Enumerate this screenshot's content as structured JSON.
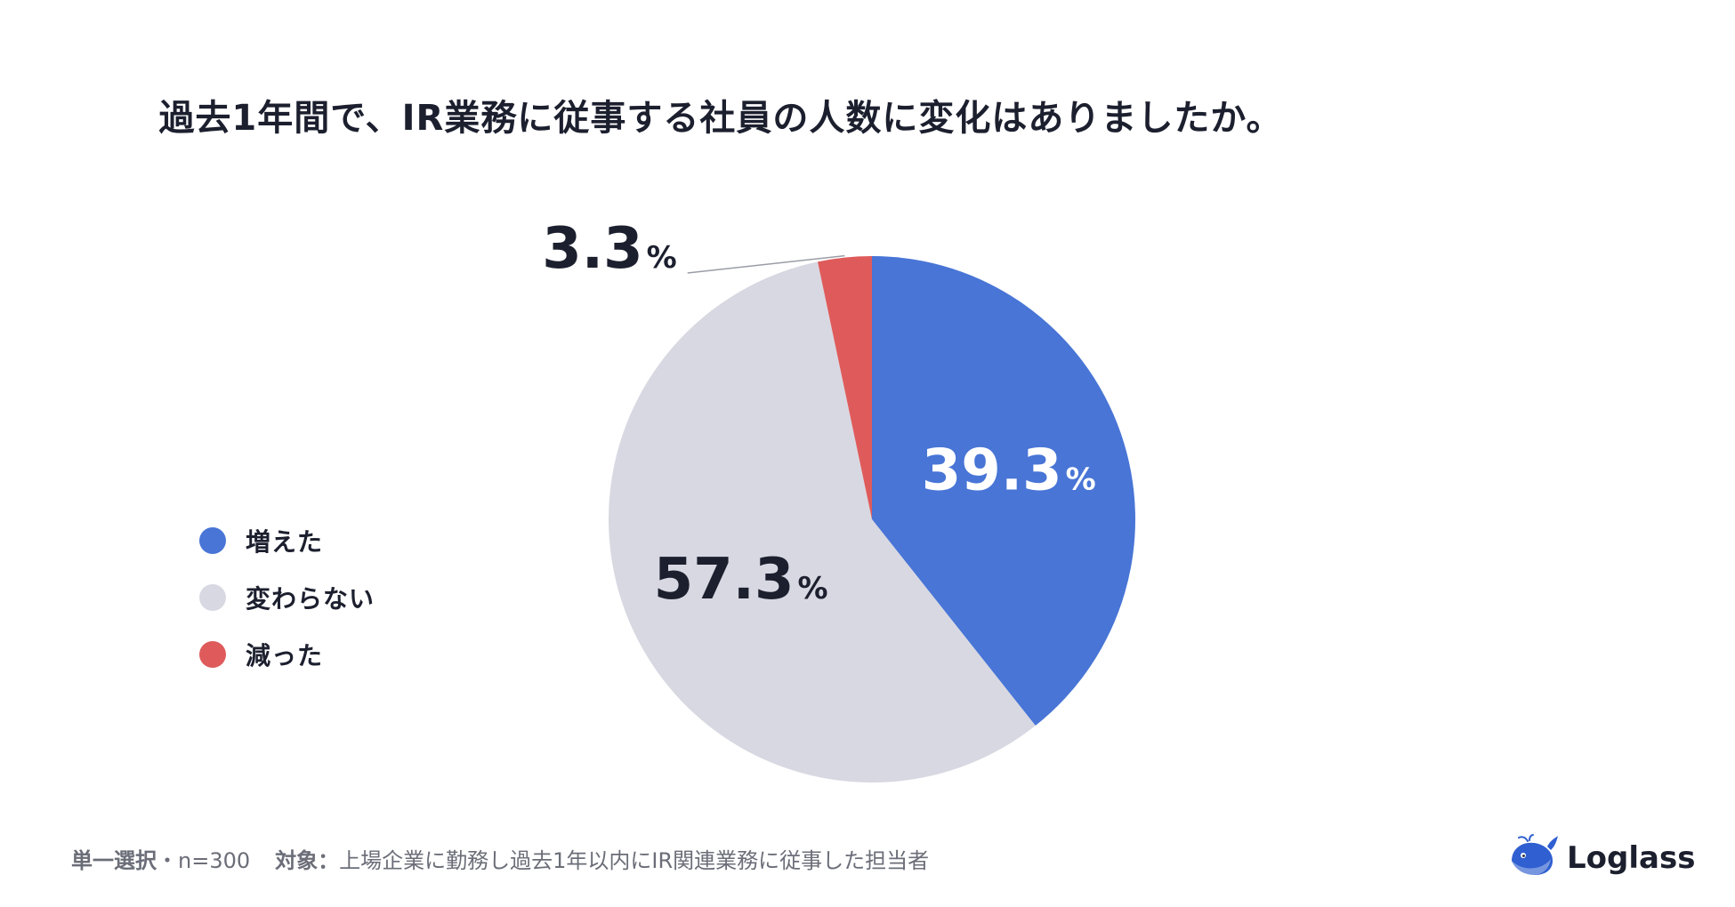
{
  "title": "過去1年間で、IR業務に従事する社員の人数に変化はありましたか。",
  "chart_data": {
    "type": "pie",
    "title": "過去1年間で、IR業務に従事する社員の人数に変化はありましたか。",
    "unit": "%",
    "slices": [
      {
        "label": "増えた",
        "value": 39.3,
        "color": "#4875d6"
      },
      {
        "label": "変わらない",
        "value": 57.3,
        "color": "#d8d8e2"
      },
      {
        "label": "減った",
        "value": 3.3,
        "color": "#df5b5b"
      }
    ],
    "legend_position": "left"
  },
  "legend": {
    "items": [
      {
        "label": "増えた",
        "color": "#4875d6"
      },
      {
        "label": "変わらない",
        "color": "#d8d8e2"
      },
      {
        "label": "減った",
        "color": "#df5b5b"
      }
    ]
  },
  "footer": {
    "selection": "単一選択",
    "separator": "・",
    "sample": "n=300",
    "target_label": "対象：",
    "target_text": "上場企業に勤務し過去1年以内にIR関連業務に従事した担当者"
  },
  "brand": {
    "name": "Loglass",
    "icon": "whale-logo-icon",
    "color": "#2f5fd0"
  }
}
